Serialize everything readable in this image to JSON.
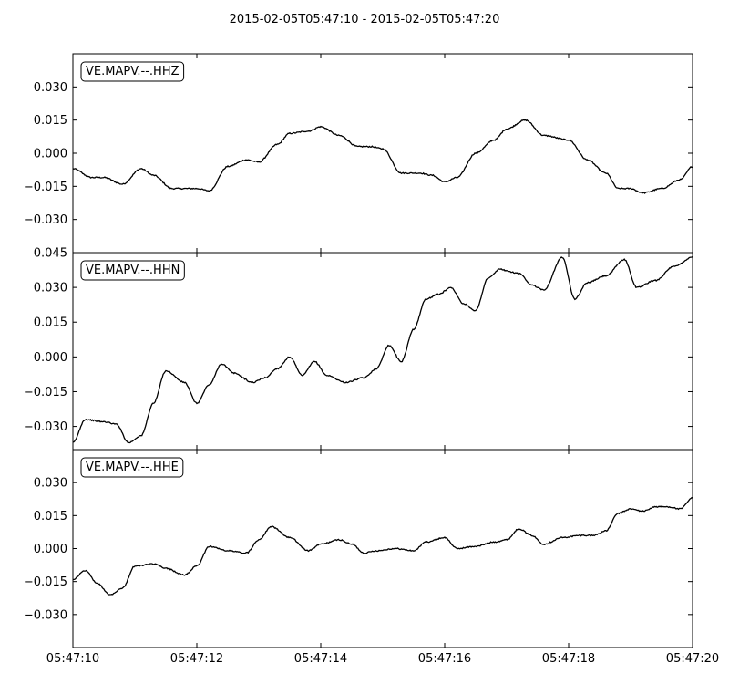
{
  "chart_data": {
    "type": "line",
    "title": "2015-02-05T05:47:10  -  2015-02-05T05:47:20",
    "xlim": [
      0,
      10
    ],
    "x_ticks": [
      0,
      2,
      4,
      6,
      8,
      10
    ],
    "x_tick_labels": [
      "05:47:10",
      "05:47:12",
      "05:47:14",
      "05:47:16",
      "05:47:18",
      "05:47:20"
    ],
    "xlabel": "",
    "ylabel": "",
    "grid": false,
    "legend_position": "top-left",
    "panels": [
      {
        "label": "VE.MAPV.--.HHZ",
        "ylim": [
          -0.045,
          0.045
        ],
        "y_ticks": [
          -0.03,
          -0.015,
          0.0,
          0.015,
          0.03
        ],
        "y_tick_labels": [
          "−0.030",
          "−0.015",
          "0.000",
          "0.015",
          "0.030"
        ],
        "x": [
          0,
          0.3,
          0.5,
          0.8,
          1.1,
          1.3,
          1.6,
          2.0,
          2.2,
          2.5,
          2.8,
          3.0,
          3.3,
          3.5,
          3.8,
          4.0,
          4.3,
          4.6,
          4.8,
          5.0,
          5.3,
          5.6,
          5.8,
          6.0,
          6.2,
          6.5,
          6.8,
          7.0,
          7.3,
          7.6,
          8.0,
          8.3,
          8.6,
          8.8,
          9.0,
          9.2,
          9.5,
          9.8,
          10.0
        ],
        "values": [
          -0.007,
          -0.011,
          -0.011,
          -0.014,
          -0.007,
          -0.01,
          -0.016,
          -0.016,
          -0.017,
          -0.006,
          -0.003,
          -0.004,
          0.004,
          0.009,
          0.01,
          0.012,
          0.008,
          0.003,
          0.003,
          0.002,
          -0.009,
          -0.009,
          -0.01,
          -0.013,
          -0.011,
          0.0,
          0.006,
          0.011,
          0.015,
          0.008,
          0.006,
          -0.003,
          -0.009,
          -0.016,
          -0.016,
          -0.018,
          -0.016,
          -0.012,
          -0.006
        ]
      },
      {
        "label": "VE.MAPV.--.HHN",
        "ylim": [
          -0.04,
          0.045
        ],
        "y_ticks": [
          -0.03,
          -0.015,
          0.0,
          0.015,
          0.03,
          0.045
        ],
        "y_tick_labels": [
          "−0.030",
          "−0.015",
          "0.000",
          "0.015",
          "0.030",
          "0.045"
        ],
        "x": [
          0,
          0.2,
          0.5,
          0.7,
          0.9,
          1.1,
          1.3,
          1.5,
          1.8,
          2.0,
          2.2,
          2.4,
          2.6,
          2.9,
          3.1,
          3.3,
          3.5,
          3.7,
          3.9,
          4.1,
          4.4,
          4.7,
          4.9,
          5.1,
          5.3,
          5.5,
          5.7,
          5.9,
          6.1,
          6.3,
          6.5,
          6.7,
          6.9,
          7.0,
          7.2,
          7.4,
          7.6,
          7.9,
          8.1,
          8.3,
          8.6,
          8.9,
          9.1,
          9.4,
          9.7,
          10.0
        ],
        "values": [
          -0.037,
          -0.027,
          -0.028,
          -0.029,
          -0.037,
          -0.034,
          -0.02,
          -0.006,
          -0.011,
          -0.02,
          -0.012,
          -0.003,
          -0.007,
          -0.011,
          -0.009,
          -0.005,
          0.0,
          -0.008,
          -0.002,
          -0.008,
          -0.011,
          -0.009,
          -0.005,
          0.005,
          -0.002,
          0.012,
          0.025,
          0.027,
          0.03,
          0.023,
          0.02,
          0.034,
          0.038,
          0.037,
          0.036,
          0.031,
          0.029,
          0.043,
          0.025,
          0.032,
          0.035,
          0.042,
          0.03,
          0.033,
          0.039,
          0.043
        ]
      },
      {
        "label": "VE.MAPV.--.HHE",
        "ylim": [
          -0.045,
          0.045
        ],
        "y_ticks": [
          -0.03,
          -0.015,
          0.0,
          0.015,
          0.03
        ],
        "y_tick_labels": [
          "−0.030",
          "−0.015",
          "0.000",
          "0.015",
          "0.030"
        ],
        "x": [
          0,
          0.2,
          0.4,
          0.6,
          0.8,
          1.0,
          1.3,
          1.5,
          1.8,
          2.0,
          2.2,
          2.5,
          2.8,
          3.0,
          3.2,
          3.5,
          3.8,
          4.0,
          4.3,
          4.5,
          4.7,
          4.9,
          5.2,
          5.5,
          5.7,
          6.0,
          6.2,
          6.5,
          6.8,
          7.0,
          7.2,
          7.4,
          7.6,
          7.9,
          8.2,
          8.4,
          8.6,
          8.8,
          9.0,
          9.2,
          9.4,
          9.6,
          9.8,
          10.0
        ],
        "values": [
          -0.014,
          -0.01,
          -0.016,
          -0.021,
          -0.018,
          -0.008,
          -0.007,
          -0.009,
          -0.012,
          -0.008,
          0.001,
          -0.001,
          -0.002,
          0.004,
          0.01,
          0.005,
          -0.001,
          0.002,
          0.004,
          0.002,
          -0.002,
          -0.001,
          0.0,
          -0.001,
          0.003,
          0.005,
          0.0,
          0.001,
          0.003,
          0.004,
          0.009,
          0.006,
          0.002,
          0.005,
          0.006,
          0.006,
          0.008,
          0.016,
          0.018,
          0.017,
          0.019,
          0.019,
          0.018,
          0.023
        ]
      }
    ]
  }
}
